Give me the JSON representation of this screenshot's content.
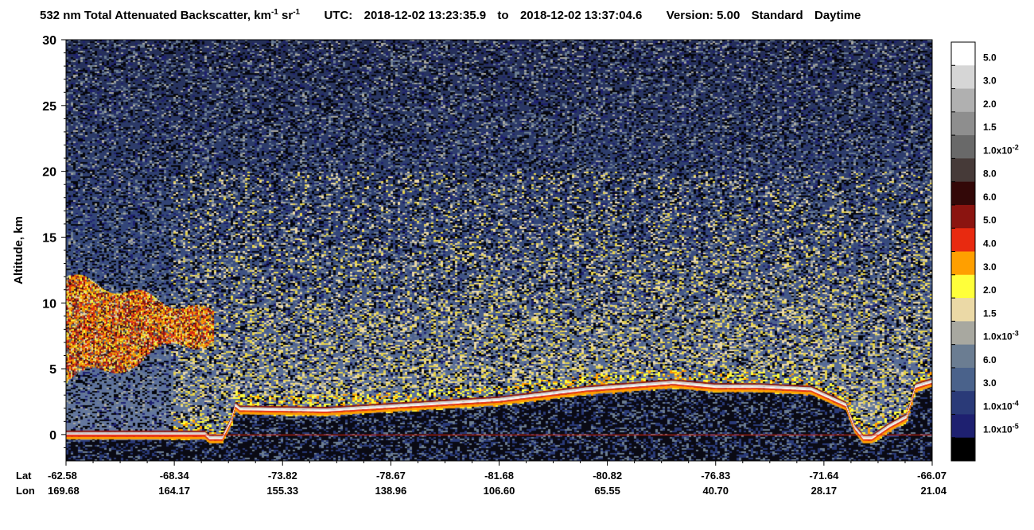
{
  "title": {
    "main": "532 nm Total Attenuated Backscatter, km",
    "unit_exp1": "-1",
    "unit_sr": " sr",
    "unit_exp2": "-1",
    "utc_label": "UTC:",
    "start": "2018-12-02 13:23:35.9",
    "to": "to",
    "end": "2018-12-02 13:37:04.6",
    "version": "Version: 5.00",
    "product": "Standard",
    "mode": "Daytime"
  },
  "chart_data": {
    "type": "heatmap",
    "ylabel": "Altitude, km",
    "ylim": [
      -2,
      30
    ],
    "yticks": [
      0,
      5,
      10,
      15,
      20,
      25,
      30
    ],
    "ytick_labels": [
      "0",
      "5",
      "10",
      "15",
      "20",
      "25",
      "30"
    ],
    "lat_label": "Lat",
    "lon_label": "Lon",
    "lat_ticks": [
      "-62.58",
      "-68.34",
      "-73.82",
      "-78.67",
      "-81.68",
      "-80.82",
      "-76.83",
      "-71.64",
      "-66.07"
    ],
    "lon_ticks": [
      "169.68",
      "164.17",
      "155.33",
      "138.96",
      "106.60",
      "65.55",
      "40.70",
      "28.17",
      "21.04"
    ],
    "surface_altitude_km": [
      [
        0.0,
        0.0
      ],
      [
        0.16,
        0.0
      ],
      [
        0.165,
        -0.3
      ],
      [
        0.18,
        -0.3
      ],
      [
        0.19,
        1.0
      ],
      [
        0.195,
        2.2
      ],
      [
        0.2,
        1.9
      ],
      [
        0.3,
        1.8
      ],
      [
        0.4,
        2.2
      ],
      [
        0.5,
        2.6
      ],
      [
        0.6,
        3.4
      ],
      [
        0.7,
        3.9
      ],
      [
        0.75,
        3.6
      ],
      [
        0.8,
        3.6
      ],
      [
        0.86,
        3.4
      ],
      [
        0.9,
        2.2
      ],
      [
        0.91,
        0.5
      ],
      [
        0.92,
        -0.3
      ],
      [
        0.93,
        -0.3
      ],
      [
        0.95,
        0.6
      ],
      [
        0.97,
        1.3
      ],
      [
        0.98,
        3.6
      ],
      [
        1.0,
        4.0
      ]
    ],
    "cloud_region": {
      "x_start": 0.0,
      "x_end": 0.17,
      "alt_bottom_km": 4,
      "alt_top_km": 12
    },
    "colorbar": {
      "labels": [
        "5.0",
        "3.0",
        "2.0",
        "1.5",
        "1.0x10",
        "8.0",
        "6.0",
        "5.0",
        "4.0",
        "3.0",
        "2.0",
        "1.5",
        "1.0x10",
        "6.0",
        "3.0",
        "1.0x10",
        "1.0x10"
      ],
      "exponents": [
        "",
        "",
        "",
        "",
        "-2",
        "",
        "",
        "",
        "",
        "",
        "",
        "",
        "-3",
        "",
        "",
        "-4",
        "-5"
      ],
      "colors": [
        "#ffffff",
        "#d6d6d6",
        "#b0b0b0",
        "#8e8e8e",
        "#696969",
        "#463a38",
        "#330808",
        "#8b1410",
        "#e82a10",
        "#ff9f00",
        "#ffff3a",
        "#ebd9a6",
        "#a8a8a0",
        "#6b7d92",
        "#4a628b",
        "#2a3a78",
        "#1e2070",
        "#000000"
      ]
    }
  }
}
